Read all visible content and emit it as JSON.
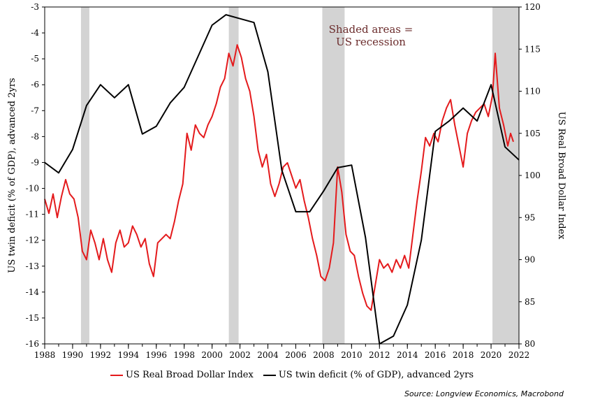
{
  "colors": {
    "dollar": "#e41a1c",
    "deficit": "#000000",
    "recession": "#d3d3d3"
  },
  "chart_data": {
    "type": "line",
    "annotation": [
      "Shaded areas =",
      "US recession"
    ],
    "left_axis": {
      "label": "US twin deficit (% of GDP), advanced 2yrs",
      "ylim": [
        -16,
        -3
      ],
      "ticks": [
        -3,
        -4,
        -5,
        -6,
        -7,
        -8,
        -9,
        -10,
        -11,
        -12,
        -13,
        -14,
        -15,
        -16
      ]
    },
    "right_axis": {
      "label": "US Real Broad Dollar Index",
      "ylim": [
        80,
        120
      ],
      "ticks": [
        120,
        115,
        110,
        105,
        100,
        95,
        90,
        85,
        80
      ]
    },
    "x_axis": {
      "xlim": [
        1988,
        2022
      ],
      "ticks": [
        1988,
        1990,
        1992,
        1994,
        1996,
        1998,
        2000,
        2002,
        2004,
        2006,
        2008,
        2010,
        2012,
        2014,
        2016,
        2018,
        2020,
        2022
      ]
    },
    "recessions": [
      [
        1990.6,
        1991.2
      ],
      [
        2001.2,
        2001.9
      ],
      [
        2007.9,
        2009.5
      ],
      [
        2020.1,
        2022
      ]
    ],
    "series": [
      {
        "name": "US Real Broad Dollar Index",
        "axis": "right",
        "x": [
          1988.0,
          1988.3,
          1988.6,
          1988.9,
          1989.2,
          1989.5,
          1989.8,
          1990.1,
          1990.4,
          1990.7,
          1991.0,
          1991.3,
          1991.6,
          1991.9,
          1992.2,
          1992.5,
          1992.8,
          1993.1,
          1993.4,
          1993.7,
          1994.0,
          1994.3,
          1994.6,
          1994.9,
          1995.2,
          1995.5,
          1995.8,
          1996.1,
          1996.4,
          1996.7,
          1997.0,
          1997.3,
          1997.6,
          1997.9,
          1998.2,
          1998.5,
          1998.8,
          1999.1,
          1999.4,
          1999.7,
          2000.0,
          2000.3,
          2000.6,
          2000.9,
          2001.2,
          2001.5,
          2001.8,
          2002.1,
          2002.4,
          2002.7,
          2003.0,
          2003.3,
          2003.6,
          2003.9,
          2004.2,
          2004.5,
          2004.8,
          2005.1,
          2005.4,
          2005.7,
          2006.0,
          2006.3,
          2006.6,
          2006.9,
          2007.2,
          2007.5,
          2007.8,
          2008.1,
          2008.4,
          2008.7,
          2009.0,
          2009.3,
          2009.6,
          2009.9,
          2010.2,
          2010.5,
          2010.8,
          2011.1,
          2011.4,
          2011.7,
          2012.0,
          2012.3,
          2012.6,
          2012.9,
          2013.2,
          2013.5,
          2013.8,
          2014.1,
          2014.4,
          2014.7,
          2015.0,
          2015.3,
          2015.6,
          2015.9,
          2016.2,
          2016.5,
          2016.8,
          2017.1,
          2017.4,
          2017.7,
          2018.0,
          2018.3,
          2018.6,
          2018.9,
          2019.2,
          2019.5,
          2019.8,
          2020.1,
          2020.3,
          2020.6,
          2020.9,
          2021.2,
          2021.4,
          2021.6
        ],
        "values": [
          97.2,
          95.5,
          97.8,
          95.0,
          97.5,
          99.5,
          97.8,
          97.2,
          95.0,
          91.0,
          90.0,
          93.5,
          92.0,
          90.0,
          92.5,
          90.0,
          88.5,
          92.0,
          93.5,
          91.5,
          92.0,
          94.0,
          93.0,
          91.5,
          92.5,
          89.5,
          88.0,
          92.0,
          92.5,
          93.0,
          92.5,
          94.5,
          97.0,
          99.0,
          105.0,
          103.0,
          106.0,
          105.0,
          104.5,
          106.0,
          107.0,
          108.5,
          110.5,
          111.5,
          114.5,
          113.0,
          115.5,
          114.0,
          111.5,
          110.0,
          107.0,
          103.0,
          101.0,
          102.5,
          99.0,
          97.5,
          99.0,
          101.0,
          101.5,
          100.0,
          98.5,
          99.5,
          97.0,
          95.0,
          92.5,
          90.5,
          88.0,
          87.5,
          89.0,
          92.0,
          101.0,
          98.0,
          93.0,
          91.0,
          90.5,
          88.0,
          86.0,
          84.5,
          84.0,
          87.0,
          90.0,
          89.0,
          89.5,
          88.5,
          90.0,
          89.0,
          90.5,
          89.0,
          93.0,
          97.0,
          100.5,
          104.5,
          103.5,
          105.0,
          104.0,
          106.5,
          108.0,
          109.0,
          106.0,
          103.5,
          101.0,
          105.0,
          106.5,
          107.5,
          108.0,
          108.5,
          107.0,
          109.5,
          114.5,
          108.0,
          106.0,
          103.5,
          105.0,
          104.0
        ]
      },
      {
        "name": "US twin deficit (% of GDP), advanced 2yrs",
        "axis": "left",
        "x": [
          1988,
          1989,
          1990,
          1991,
          1992,
          1993,
          1994,
          1995,
          1996,
          1997,
          1998,
          1999,
          2000,
          2001,
          2002,
          2003,
          2004,
          2005,
          2006,
          2007,
          2008,
          2009,
          2010,
          2011,
          2012,
          2013,
          2014,
          2015,
          2016,
          2017,
          2018,
          2019,
          2020,
          2021,
          2022
        ],
        "values": [
          -9.0,
          -9.4,
          -8.5,
          -6.8,
          -6.0,
          -6.5,
          -6.0,
          -7.9,
          -7.6,
          -6.7,
          -6.1,
          -4.9,
          -3.7,
          -3.3,
          -3.45,
          -3.6,
          -5.5,
          -9.3,
          -10.9,
          -10.9,
          -10.1,
          -9.2,
          -9.1,
          -11.9,
          -16.0,
          -15.7,
          -14.5,
          -12.0,
          -7.8,
          -7.4,
          -6.9,
          -7.4,
          -6.0,
          -8.4,
          -8.9
        ]
      }
    ]
  },
  "source": "Source: Longview Economics, Macrobond"
}
